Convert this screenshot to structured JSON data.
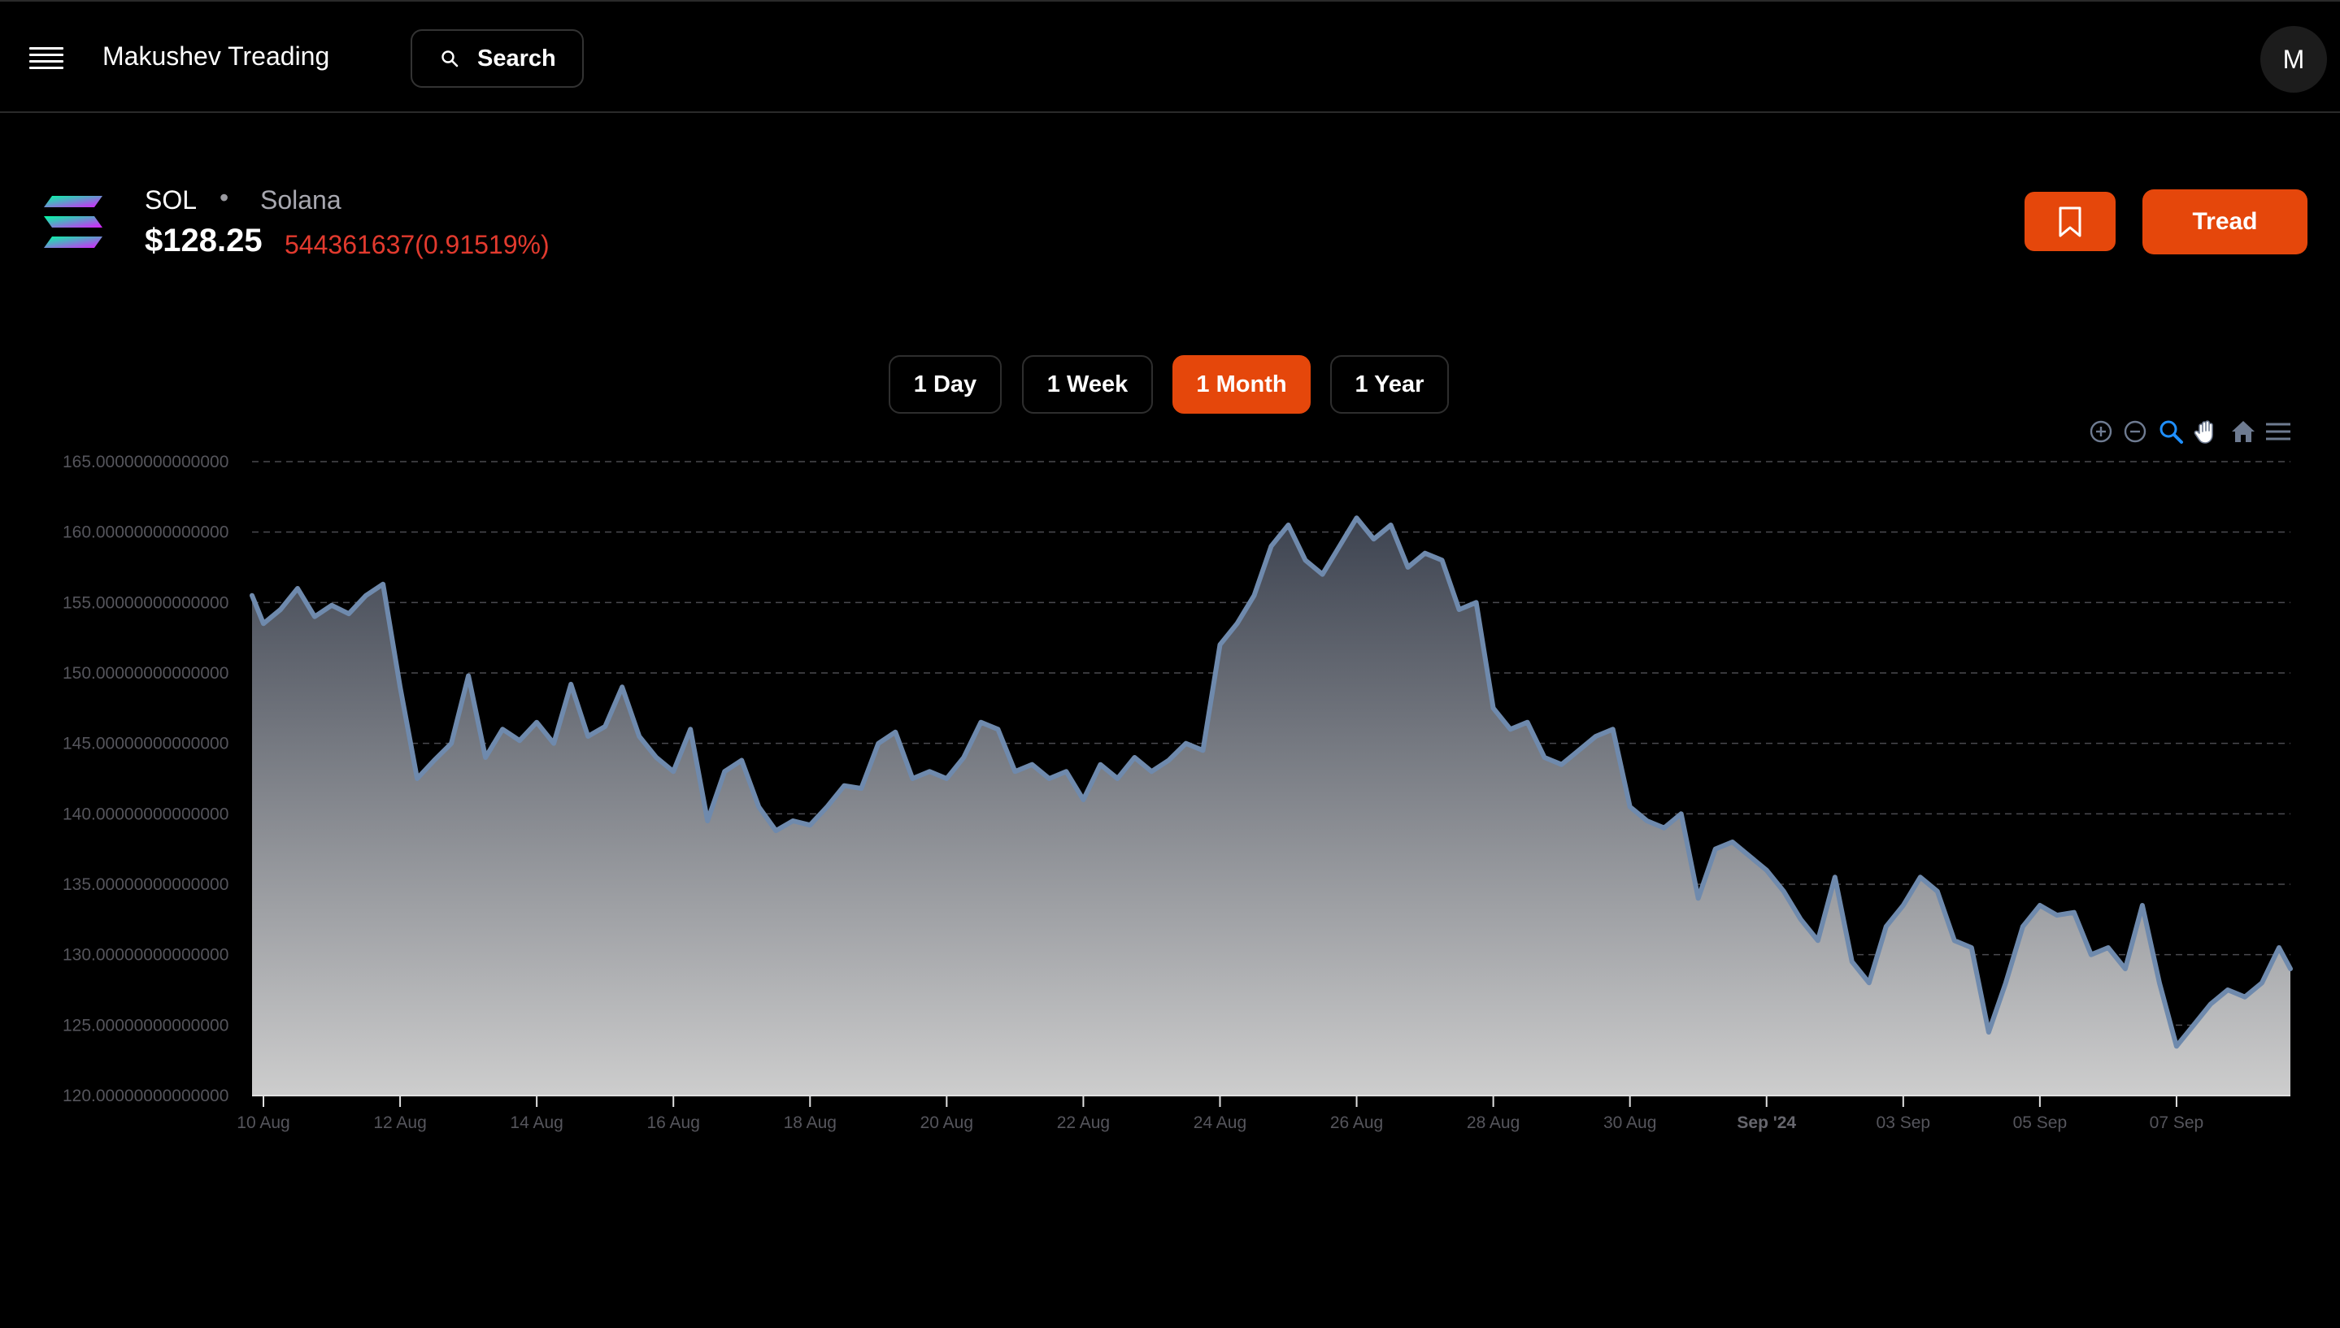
{
  "header": {
    "app_title": "Makushev Treading",
    "search_label": "Search",
    "avatar_initial": "M"
  },
  "asset": {
    "symbol": "SOL",
    "separator": "•",
    "name": "Solana",
    "price": "$128.25",
    "change": "544361637(0.91519%)",
    "change_color": "#e23a2e"
  },
  "actions": {
    "bookmark_icon": "bookmark-icon",
    "trade_label": "Tread"
  },
  "ranges": [
    {
      "label": "1 Day",
      "active": false
    },
    {
      "label": "1 Week",
      "active": false
    },
    {
      "label": "1 Month",
      "active": true
    },
    {
      "label": "1 Year",
      "active": false
    }
  ],
  "chart_toolbar": [
    "zoom-in-icon",
    "zoom-out-icon",
    "zoom-selection-icon",
    "pan-hand-icon",
    "reset-home-icon",
    "chart-menu-icon"
  ],
  "colors": {
    "accent": "#e5470b",
    "series_line": "#6f8aad",
    "area_top": "#3d4350",
    "area_bottom": "#cdcdcd",
    "negative": "#e23a2e",
    "selected_tool": "#1f8fff"
  },
  "chart_data": {
    "type": "area",
    "title": "",
    "xlabel": "",
    "ylabel": "",
    "ylim": [
      120,
      165
    ],
    "yticks": [
      {
        "value": 165,
        "label": "165.00000000000000"
      },
      {
        "value": 160,
        "label": "160.00000000000000"
      },
      {
        "value": 155,
        "label": "155.00000000000000"
      },
      {
        "value": 150,
        "label": "150.00000000000000"
      },
      {
        "value": 145,
        "label": "145.00000000000000"
      },
      {
        "value": 140,
        "label": "140.00000000000000"
      },
      {
        "value": 135,
        "label": "135.00000000000000"
      },
      {
        "value": 130,
        "label": "130.00000000000000"
      },
      {
        "value": 125,
        "label": "125.00000000000000"
      },
      {
        "value": 120,
        "label": "120.00000000000000"
      }
    ],
    "xrange": [
      "2024-08-09T20:00",
      "2024-09-08T16:00"
    ],
    "xticks": [
      {
        "date": "2024-08-10",
        "label": "10 Aug",
        "bold": false
      },
      {
        "date": "2024-08-12",
        "label": "12 Aug",
        "bold": false
      },
      {
        "date": "2024-08-14",
        "label": "14 Aug",
        "bold": false
      },
      {
        "date": "2024-08-16",
        "label": "16 Aug",
        "bold": false
      },
      {
        "date": "2024-08-18",
        "label": "18 Aug",
        "bold": false
      },
      {
        "date": "2024-08-20",
        "label": "20 Aug",
        "bold": false
      },
      {
        "date": "2024-08-22",
        "label": "22 Aug",
        "bold": false
      },
      {
        "date": "2024-08-24",
        "label": "24 Aug",
        "bold": false
      },
      {
        "date": "2024-08-26",
        "label": "26 Aug",
        "bold": false
      },
      {
        "date": "2024-08-28",
        "label": "28 Aug",
        "bold": false
      },
      {
        "date": "2024-08-30",
        "label": "30 Aug",
        "bold": false
      },
      {
        "date": "2024-09-01",
        "label": "Sep '24",
        "bold": true
      },
      {
        "date": "2024-09-03",
        "label": "03 Sep",
        "bold": false
      },
      {
        "date": "2024-09-05",
        "label": "05 Sep",
        "bold": false
      },
      {
        "date": "2024-09-07",
        "label": "07 Sep",
        "bold": false
      }
    ],
    "grid": "horizontal-dashed",
    "series": [
      {
        "values": [
          [
            "2024-08-09T20:00",
            155.5
          ],
          [
            "2024-08-10T00:00",
            153.5
          ],
          [
            "2024-08-10T06:00",
            154.5
          ],
          [
            "2024-08-10T12:00",
            156.0
          ],
          [
            "2024-08-10T18:00",
            154.0
          ],
          [
            "2024-08-11T00:00",
            154.8
          ],
          [
            "2024-08-11T06:00",
            154.2
          ],
          [
            "2024-08-11T12:00",
            155.5
          ],
          [
            "2024-08-11T18:00",
            156.3
          ],
          [
            "2024-08-12T00:00",
            149.0
          ],
          [
            "2024-08-12T06:00",
            142.5
          ],
          [
            "2024-08-12T12:00",
            143.8
          ],
          [
            "2024-08-12T18:00",
            145.0
          ],
          [
            "2024-08-13T00:00",
            149.8
          ],
          [
            "2024-08-13T06:00",
            144.0
          ],
          [
            "2024-08-13T12:00",
            146.0
          ],
          [
            "2024-08-13T18:00",
            145.2
          ],
          [
            "2024-08-14T00:00",
            146.5
          ],
          [
            "2024-08-14T06:00",
            145.0
          ],
          [
            "2024-08-14T12:00",
            149.2
          ],
          [
            "2024-08-14T18:00",
            145.5
          ],
          [
            "2024-08-15T00:00",
            146.2
          ],
          [
            "2024-08-15T06:00",
            149.0
          ],
          [
            "2024-08-15T12:00",
            145.5
          ],
          [
            "2024-08-15T18:00",
            144.0
          ],
          [
            "2024-08-16T00:00",
            143.0
          ],
          [
            "2024-08-16T06:00",
            146.0
          ],
          [
            "2024-08-16T12:00",
            139.5
          ],
          [
            "2024-08-16T18:00",
            143.0
          ],
          [
            "2024-08-17T00:00",
            143.8
          ],
          [
            "2024-08-17T06:00",
            140.5
          ],
          [
            "2024-08-17T12:00",
            138.8
          ],
          [
            "2024-08-17T18:00",
            139.5
          ],
          [
            "2024-08-18T00:00",
            139.2
          ],
          [
            "2024-08-18T06:00",
            140.5
          ],
          [
            "2024-08-18T12:00",
            142.0
          ],
          [
            "2024-08-18T18:00",
            141.8
          ],
          [
            "2024-08-19T00:00",
            145.0
          ],
          [
            "2024-08-19T06:00",
            145.8
          ],
          [
            "2024-08-19T12:00",
            142.5
          ],
          [
            "2024-08-19T18:00",
            143.0
          ],
          [
            "2024-08-20T00:00",
            142.5
          ],
          [
            "2024-08-20T06:00",
            144.0
          ],
          [
            "2024-08-20T12:00",
            146.5
          ],
          [
            "2024-08-20T18:00",
            146.0
          ],
          [
            "2024-08-21T00:00",
            143.0
          ],
          [
            "2024-08-21T06:00",
            143.5
          ],
          [
            "2024-08-21T12:00",
            142.5
          ],
          [
            "2024-08-21T18:00",
            143.0
          ],
          [
            "2024-08-22T00:00",
            141.0
          ],
          [
            "2024-08-22T06:00",
            143.5
          ],
          [
            "2024-08-22T12:00",
            142.5
          ],
          [
            "2024-08-22T18:00",
            144.0
          ],
          [
            "2024-08-23T00:00",
            143.0
          ],
          [
            "2024-08-23T06:00",
            143.8
          ],
          [
            "2024-08-23T12:00",
            145.0
          ],
          [
            "2024-08-23T18:00",
            144.5
          ],
          [
            "2024-08-24T00:00",
            152.0
          ],
          [
            "2024-08-24T06:00",
            153.5
          ],
          [
            "2024-08-24T12:00",
            155.5
          ],
          [
            "2024-08-24T18:00",
            159.0
          ],
          [
            "2024-08-25T00:00",
            160.5
          ],
          [
            "2024-08-25T06:00",
            158.0
          ],
          [
            "2024-08-25T12:00",
            157.0
          ],
          [
            "2024-08-25T18:00",
            159.0
          ],
          [
            "2024-08-26T00:00",
            161.0
          ],
          [
            "2024-08-26T06:00",
            159.5
          ],
          [
            "2024-08-26T12:00",
            160.5
          ],
          [
            "2024-08-26T18:00",
            157.5
          ],
          [
            "2024-08-27T00:00",
            158.5
          ],
          [
            "2024-08-27T06:00",
            158.0
          ],
          [
            "2024-08-27T12:00",
            154.5
          ],
          [
            "2024-08-27T18:00",
            155.0
          ],
          [
            "2024-08-28T00:00",
            147.5
          ],
          [
            "2024-08-28T06:00",
            146.0
          ],
          [
            "2024-08-28T12:00",
            146.5
          ],
          [
            "2024-08-28T18:00",
            144.0
          ],
          [
            "2024-08-29T00:00",
            143.5
          ],
          [
            "2024-08-29T06:00",
            144.5
          ],
          [
            "2024-08-29T12:00",
            145.5
          ],
          [
            "2024-08-29T18:00",
            146.0
          ],
          [
            "2024-08-30T00:00",
            140.5
          ],
          [
            "2024-08-30T06:00",
            139.5
          ],
          [
            "2024-08-30T12:00",
            139.0
          ],
          [
            "2024-08-30T18:00",
            140.0
          ],
          [
            "2024-08-31T00:00",
            134.0
          ],
          [
            "2024-08-31T06:00",
            137.5
          ],
          [
            "2024-08-31T12:00",
            138.0
          ],
          [
            "2024-08-31T18:00",
            137.0
          ],
          [
            "2024-09-01T00:00",
            136.0
          ],
          [
            "2024-09-01T06:00",
            134.5
          ],
          [
            "2024-09-01T12:00",
            132.5
          ],
          [
            "2024-09-01T18:00",
            131.0
          ],
          [
            "2024-09-02T00:00",
            135.5
          ],
          [
            "2024-09-02T06:00",
            129.5
          ],
          [
            "2024-09-02T12:00",
            128.0
          ],
          [
            "2024-09-02T18:00",
            132.0
          ],
          [
            "2024-09-03T00:00",
            133.5
          ],
          [
            "2024-09-03T06:00",
            135.5
          ],
          [
            "2024-09-03T12:00",
            134.5
          ],
          [
            "2024-09-03T18:00",
            131.0
          ],
          [
            "2024-09-04T00:00",
            130.5
          ],
          [
            "2024-09-04T06:00",
            124.5
          ],
          [
            "2024-09-04T12:00",
            128.0
          ],
          [
            "2024-09-04T18:00",
            132.0
          ],
          [
            "2024-09-05T00:00",
            133.5
          ],
          [
            "2024-09-05T06:00",
            132.8
          ],
          [
            "2024-09-05T12:00",
            133.0
          ],
          [
            "2024-09-05T18:00",
            130.0
          ],
          [
            "2024-09-06T00:00",
            130.5
          ],
          [
            "2024-09-06T06:00",
            129.0
          ],
          [
            "2024-09-06T12:00",
            133.5
          ],
          [
            "2024-09-06T18:00",
            128.0
          ],
          [
            "2024-09-07T00:00",
            123.5
          ],
          [
            "2024-09-07T06:00",
            125.0
          ],
          [
            "2024-09-07T12:00",
            126.5
          ],
          [
            "2024-09-07T18:00",
            127.5
          ],
          [
            "2024-09-08T00:00",
            127.0
          ],
          [
            "2024-09-08T06:00",
            128.0
          ],
          [
            "2024-09-08T12:00",
            130.5
          ],
          [
            "2024-09-08T16:00",
            129.0
          ]
        ]
      }
    ]
  }
}
